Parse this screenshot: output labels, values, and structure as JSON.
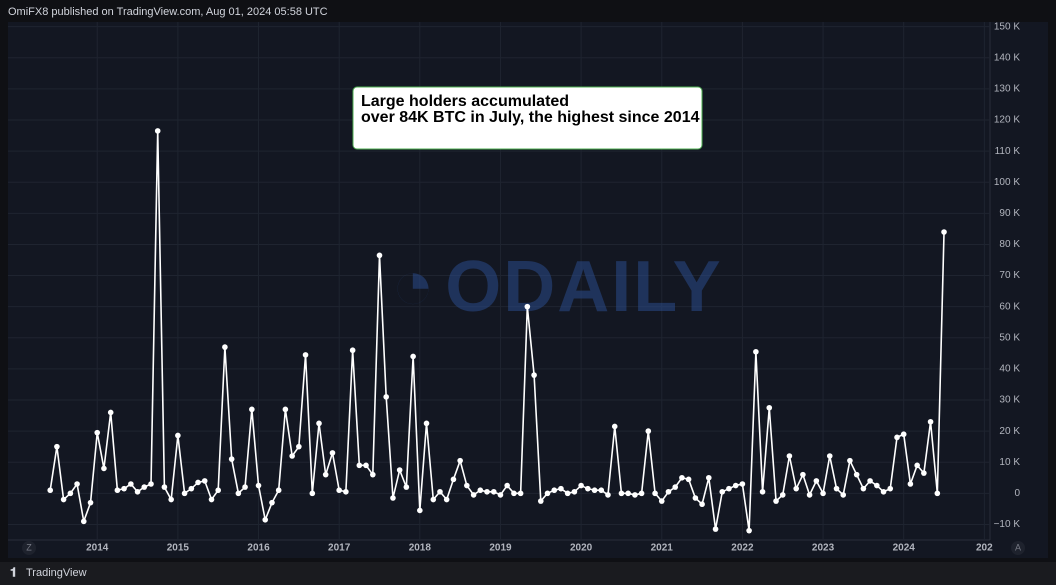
{
  "header": "OmiFX8 published on TradingView.com, Aug 01, 2024 05:58 UTC",
  "footer": "TradingView",
  "watermark": "ODAILY",
  "axis_buttons": [
    "Z",
    "A"
  ],
  "chart_data": {
    "type": "line",
    "annotation": [
      "Large holders accumulated",
      "over 84K BTC in July, the highest since 2014"
    ],
    "color": "#ffffff",
    "grid": true,
    "xlim": [
      2013.34,
      2025.07
    ],
    "xticks": [
      2014,
      2015,
      2016,
      2017,
      2018,
      2019,
      2020,
      2021,
      2022,
      2023,
      2024,
      {
        "value": 2025,
        "label": "202"
      }
    ],
    "ylim": [
      -15,
      151.5
    ],
    "yticks": [
      {
        "value": -10,
        "label": "−10 K"
      },
      0,
      {
        "value": 10,
        "label": "10 K"
      },
      {
        "value": 20,
        "label": "20 K"
      },
      {
        "value": 30,
        "label": "30 K"
      },
      {
        "value": 40,
        "label": "40 K"
      },
      {
        "value": 50,
        "label": "50 K"
      },
      {
        "value": 60,
        "label": "60 K"
      },
      {
        "value": 70,
        "label": "70 K"
      },
      {
        "value": 80,
        "label": "80 K"
      },
      {
        "value": 90,
        "label": "90 K"
      },
      {
        "value": 100,
        "label": "100 K"
      },
      {
        "value": 110,
        "label": "110 K"
      },
      {
        "value": 120,
        "label": "120 K"
      },
      {
        "value": 130,
        "label": "130 K"
      },
      {
        "value": 140,
        "label": "140 K"
      },
      {
        "value": 150,
        "label": "150 K"
      }
    ],
    "x": [
      2013.417,
      2013.5,
      2013.583,
      2013.667,
      2013.75,
      2013.833,
      2013.917,
      2014.0,
      2014.083,
      2014.167,
      2014.25,
      2014.333,
      2014.417,
      2014.5,
      2014.583,
      2014.667,
      2014.75,
      2014.833,
      2014.917,
      2015.0,
      2015.083,
      2015.167,
      2015.25,
      2015.333,
      2015.417,
      2015.5,
      2015.583,
      2015.667,
      2015.75,
      2015.833,
      2015.917,
      2016.0,
      2016.083,
      2016.167,
      2016.25,
      2016.333,
      2016.417,
      2016.5,
      2016.583,
      2016.667,
      2016.75,
      2016.833,
      2016.917,
      2017.0,
      2017.083,
      2017.167,
      2017.25,
      2017.333,
      2017.417,
      2017.5,
      2017.583,
      2017.667,
      2017.75,
      2017.833,
      2017.917,
      2018.0,
      2018.083,
      2018.167,
      2018.25,
      2018.333,
      2018.417,
      2018.5,
      2018.583,
      2018.667,
      2018.75,
      2018.833,
      2018.917,
      2019.0,
      2019.083,
      2019.167,
      2019.25,
      2019.333,
      2019.417,
      2019.5,
      2019.583,
      2019.667,
      2019.75,
      2019.833,
      2019.917,
      2020.0,
      2020.083,
      2020.167,
      2020.25,
      2020.333,
      2020.417,
      2020.5,
      2020.583,
      2020.667,
      2020.75,
      2020.833,
      2020.917,
      2021.0,
      2021.083,
      2021.167,
      2021.25,
      2021.333,
      2021.417,
      2021.5,
      2021.583,
      2021.667,
      2021.75,
      2021.833,
      2021.917,
      2022.0,
      2022.083,
      2022.167,
      2022.25,
      2022.333,
      2022.417,
      2022.5,
      2022.583,
      2022.667,
      2022.75,
      2022.833,
      2022.917,
      2023.0,
      2023.083,
      2023.167,
      2023.25,
      2023.333,
      2023.417,
      2023.5,
      2023.583,
      2023.667,
      2023.75,
      2023.833,
      2023.917,
      2024.0,
      2024.083,
      2024.167,
      2024.25,
      2024.333,
      2024.417,
      2024.5
    ],
    "values": [
      1,
      15,
      -2,
      0,
      3,
      -9,
      -3,
      19.5,
      8,
      26,
      1,
      1.5,
      3,
      0.5,
      2,
      3,
      116.5,
      2,
      -2,
      18.6,
      0,
      1.5,
      3.5,
      4,
      -2,
      1,
      47,
      11,
      0,
      2,
      27,
      2.5,
      -8.5,
      -3,
      1,
      27,
      12,
      15,
      44.5,
      0,
      22.5,
      6,
      13,
      1,
      0.5,
      46,
      9,
      9,
      6,
      76.5,
      31,
      -1.5,
      7.5,
      2,
      44,
      -5.5,
      22.5,
      -2,
      0.5,
      -2,
      4.5,
      10.5,
      2.5,
      -0.5,
      1,
      0.5,
      0.5,
      -0.5,
      2.5,
      0,
      0,
      60,
      38,
      -2.5,
      0,
      1,
      1.5,
      0,
      0.5,
      2.5,
      1.5,
      1,
      1,
      -0.5,
      21.5,
      0,
      0,
      -0.5,
      0,
      20,
      0,
      -2.5,
      0.5,
      2,
      5,
      4.5,
      -1.5,
      -3.5,
      5,
      -11.5,
      0.5,
      1.5,
      2.5,
      3,
      -12,
      45.5,
      0.5,
      27.5,
      -2.5,
      -0.5,
      12,
      1.5,
      6,
      -0.5,
      4,
      0,
      12,
      1.5,
      -0.5,
      10.5,
      6,
      1.5,
      4,
      2.5,
      0.5,
      1.5,
      18,
      19,
      3,
      9,
      6.5,
      23,
      0,
      84
    ]
  }
}
